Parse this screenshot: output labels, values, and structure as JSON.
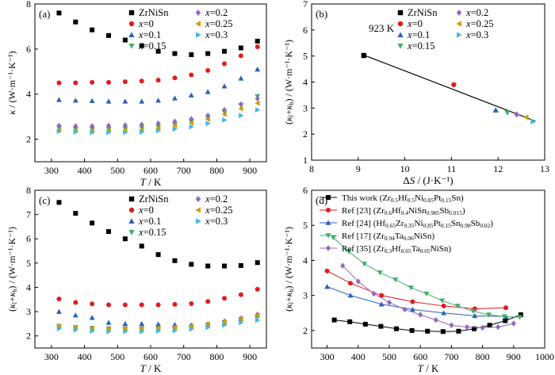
{
  "chart_data": [
    {
      "type": "scatter",
      "panel_label": "(a)",
      "xlabel": "T / K",
      "ylabel": "κ / (W·m⁻¹·K⁻¹)",
      "xlim": [
        250,
        950
      ],
      "ylim": [
        1,
        8
      ],
      "xticks": [
        300,
        400,
        500,
        600,
        700,
        800,
        900
      ],
      "yticks": [
        2,
        4,
        6,
        8
      ],
      "legend_columns": [
        [
          "ZrNiSn",
          "x=0",
          "x=0.1",
          "x=0.15"
        ],
        [
          "x=0.2",
          "x=0.25",
          "x=0.3"
        ]
      ],
      "x": [
        323,
        373,
        423,
        473,
        523,
        573,
        623,
        673,
        723,
        773,
        823,
        873,
        923
      ],
      "series": [
        {
          "name": "ZrNiSn",
          "marker": "square",
          "color": "#000000",
          "values": [
            7.6,
            7.2,
            6.85,
            6.6,
            6.4,
            6.15,
            5.9,
            5.8,
            5.75,
            5.8,
            5.9,
            6.05,
            6.35
          ]
        },
        {
          "name": "x=0",
          "marker": "circle",
          "color": "#e31a1c",
          "values": [
            4.5,
            4.5,
            4.52,
            4.52,
            4.55,
            4.58,
            4.62,
            4.72,
            4.85,
            5.05,
            5.35,
            5.7,
            6.1
          ]
        },
        {
          "name": "x=0.1",
          "marker": "triangle-up",
          "color": "#2c5fb8",
          "values": [
            3.75,
            3.72,
            3.7,
            3.68,
            3.68,
            3.68,
            3.72,
            3.82,
            3.95,
            4.1,
            4.35,
            4.7,
            5.1
          ]
        },
        {
          "name": "x=0.15",
          "marker": "triangle-down",
          "color": "#3fae6a",
          "values": [
            2.5,
            2.45,
            2.45,
            2.45,
            2.47,
            2.5,
            2.55,
            2.65,
            2.78,
            2.95,
            3.2,
            3.5,
            3.9
          ]
        },
        {
          "name": "x=0.2",
          "marker": "diamond",
          "color": "#9467bd",
          "values": [
            2.6,
            2.58,
            2.58,
            2.6,
            2.62,
            2.65,
            2.7,
            2.78,
            2.9,
            3.05,
            3.3,
            3.55,
            3.8
          ]
        },
        {
          "name": "x=0.25",
          "marker": "triangle-left",
          "color": "#c8a000",
          "values": [
            2.4,
            2.38,
            2.38,
            2.38,
            2.4,
            2.42,
            2.5,
            2.6,
            2.72,
            2.88,
            3.1,
            3.35,
            3.6
          ]
        },
        {
          "name": "x=0.3",
          "marker": "triangle-right",
          "color": "#3db7e4",
          "values": [
            2.35,
            2.32,
            2.3,
            2.3,
            2.3,
            2.32,
            2.38,
            2.45,
            2.55,
            2.7,
            2.85,
            3.05,
            3.3
          ]
        }
      ]
    },
    {
      "type": "scatter",
      "panel_label": "(b)",
      "annotation": "923 K",
      "xlabel": "ΔS / (J·K⁻¹)",
      "ylabel": "(κ_l+κ_b) / (W·m⁻¹·K⁻¹)",
      "xlim": [
        8,
        13
      ],
      "ylim": [
        1,
        7
      ],
      "xticks": [
        8,
        9,
        10,
        11,
        12,
        13
      ],
      "yticks": [
        1,
        2,
        3,
        4,
        5,
        6,
        7
      ],
      "legend_columns": [
        [
          "ZrNiSn",
          "x=0",
          "x=0.1",
          "x=0.15"
        ],
        [
          "x=0.2",
          "x=0.25",
          "x=0.3"
        ]
      ],
      "fit_line": {
        "x": [
          9.1,
          12.8
        ],
        "y": [
          5.05,
          2.5
        ]
      },
      "series": [
        {
          "name": "ZrNiSn",
          "marker": "square",
          "color": "#000000",
          "x": [
            9.12
          ],
          "y": [
            5.02
          ]
        },
        {
          "name": "x=0",
          "marker": "circle",
          "color": "#e31a1c",
          "x": [
            11.05
          ],
          "y": [
            3.9
          ]
        },
        {
          "name": "x=0.1",
          "marker": "triangle-up",
          "color": "#2c5fb8",
          "x": [
            11.95
          ],
          "y": [
            2.92
          ]
        },
        {
          "name": "x=0.15",
          "marker": "triangle-down",
          "color": "#3fae6a",
          "x": [
            12.2
          ],
          "y": [
            2.82
          ]
        },
        {
          "name": "x=0.2",
          "marker": "diamond",
          "color": "#9467bd",
          "x": [
            12.4
          ],
          "y": [
            2.75
          ]
        },
        {
          "name": "x=0.25",
          "marker": "triangle-left",
          "color": "#c8a000",
          "x": [
            12.6
          ],
          "y": [
            2.65
          ]
        },
        {
          "name": "x=0.3",
          "marker": "triangle-right",
          "color": "#3db7e4",
          "x": [
            12.75
          ],
          "y": [
            2.48
          ]
        }
      ]
    },
    {
      "type": "scatter",
      "panel_label": "(c)",
      "xlabel": "T / K",
      "ylabel": "(κ_l+κ_b) / (W·m⁻¹·K⁻¹)",
      "xlim": [
        250,
        950
      ],
      "ylim": [
        1.5,
        8
      ],
      "xticks": [
        300,
        400,
        500,
        600,
        700,
        800,
        900
      ],
      "yticks": [
        2,
        3,
        4,
        5,
        6,
        7,
        8
      ],
      "legend_columns": [
        [
          "ZrNiSn",
          "x=0",
          "x=0.1",
          "x=0.15"
        ],
        [
          "x=0.2",
          "x=0.25",
          "x=0.3"
        ]
      ],
      "x": [
        323,
        373,
        423,
        473,
        523,
        573,
        623,
        673,
        723,
        773,
        823,
        873,
        923
      ],
      "series": [
        {
          "name": "ZrNiSn",
          "marker": "square",
          "color": "#000000",
          "values": [
            7.5,
            7.05,
            6.65,
            6.3,
            6.0,
            5.7,
            5.35,
            5.1,
            4.95,
            4.88,
            4.88,
            4.9,
            5.02
          ]
        },
        {
          "name": "x=0",
          "marker": "circle",
          "color": "#e31a1c",
          "values": [
            3.52,
            3.38,
            3.32,
            3.28,
            3.28,
            3.28,
            3.28,
            3.3,
            3.33,
            3.42,
            3.55,
            3.7,
            3.92
          ]
        },
        {
          "name": "x=0.1",
          "marker": "triangle-up",
          "color": "#2c5fb8",
          "values": [
            3.0,
            2.85,
            2.75,
            2.55,
            2.5,
            2.5,
            2.48,
            2.46,
            2.45,
            2.48,
            2.55,
            2.7,
            2.85
          ]
        },
        {
          "name": "x=0.15",
          "marker": "triangle-down",
          "color": "#3fae6a",
          "values": [
            2.4,
            2.35,
            2.32,
            2.3,
            2.3,
            2.3,
            2.32,
            2.35,
            2.38,
            2.45,
            2.55,
            2.68,
            2.8
          ]
        },
        {
          "name": "x=0.2",
          "marker": "diamond",
          "color": "#9467bd",
          "values": [
            2.38,
            2.32,
            2.3,
            2.28,
            2.28,
            2.3,
            2.32,
            2.35,
            2.4,
            2.48,
            2.6,
            2.72,
            2.88
          ]
        },
        {
          "name": "x=0.25",
          "marker": "triangle-left",
          "color": "#c8a000",
          "values": [
            2.4,
            2.36,
            2.32,
            2.3,
            2.3,
            2.3,
            2.32,
            2.35,
            2.4,
            2.48,
            2.58,
            2.7,
            2.85
          ]
        },
        {
          "name": "x=0.3",
          "marker": "triangle-right",
          "color": "#3db7e4",
          "values": [
            2.3,
            2.25,
            2.2,
            2.18,
            2.18,
            2.18,
            2.2,
            2.22,
            2.28,
            2.35,
            2.45,
            2.55,
            2.65
          ]
        }
      ]
    },
    {
      "type": "line",
      "panel_label": "(d)",
      "xlabel": "T / K",
      "ylabel": "(κ_l+κ_b) / (W·m⁻¹·K⁻¹)",
      "xlim": [
        250,
        1000
      ],
      "ylim": [
        1.5,
        6
      ],
      "xticks": [
        300,
        400,
        500,
        600,
        700,
        800,
        900,
        1000
      ],
      "yticks": [
        2,
        3,
        4,
        5,
        6
      ],
      "series": [
        {
          "legend": "This work (Zr0.5Hf0.5Ni0.85Pt0.15Sn)",
          "marker": "square",
          "color": "#000000",
          "x": [
            323,
            373,
            423,
            473,
            523,
            573,
            623,
            673,
            723,
            773,
            823,
            873,
            923
          ],
          "y": [
            2.3,
            2.25,
            2.18,
            2.12,
            2.05,
            2.0,
            1.98,
            1.97,
            1.98,
            2.05,
            2.15,
            2.28,
            2.45
          ]
        },
        {
          "legend": "Ref [23] (Zr0.6Hf0.4NiSn0.985Sb0.015)",
          "marker": "circle",
          "color": "#e31a1c",
          "x": [
            300,
            375,
            475,
            575,
            675,
            775,
            875
          ],
          "y": [
            3.7,
            3.35,
            3.0,
            2.82,
            2.7,
            2.62,
            2.65
          ]
        },
        {
          "legend": "Ref [24] (Hf0.65Zr0.35Ni0.85Pt0.15Sn0.98Sb0.02)",
          "marker": "triangle-up",
          "color": "#2c5fb8",
          "x": [
            300,
            375,
            475,
            575,
            675,
            775,
            875
          ],
          "y": [
            3.25,
            3.0,
            2.75,
            2.6,
            2.5,
            2.42,
            2.4
          ]
        },
        {
          "legend": "Ref [17] (Zr0.94Ta0.06NiSn)",
          "marker": "triangle-down",
          "color": "#3fae6a",
          "x": [
            320,
            370,
            420,
            470,
            520,
            570,
            620,
            670,
            720,
            770,
            820,
            870,
            920
          ],
          "y": [
            4.65,
            4.25,
            3.9,
            3.65,
            3.45,
            3.22,
            3.05,
            2.85,
            2.7,
            2.55,
            2.45,
            2.4,
            2.38
          ]
        },
        {
          "legend": "Ref [35] (Zr0.3Hf0.65Ta0.05NiSn)",
          "marker": "diamond",
          "color": "#9467bd",
          "x": [
            350,
            400,
            450,
            500,
            550,
            600,
            650,
            700,
            750,
            800,
            850,
            900
          ],
          "y": [
            3.85,
            3.4,
            3.05,
            2.8,
            2.6,
            2.45,
            2.3,
            2.15,
            2.1,
            2.08,
            2.1,
            2.2
          ]
        }
      ]
    }
  ]
}
